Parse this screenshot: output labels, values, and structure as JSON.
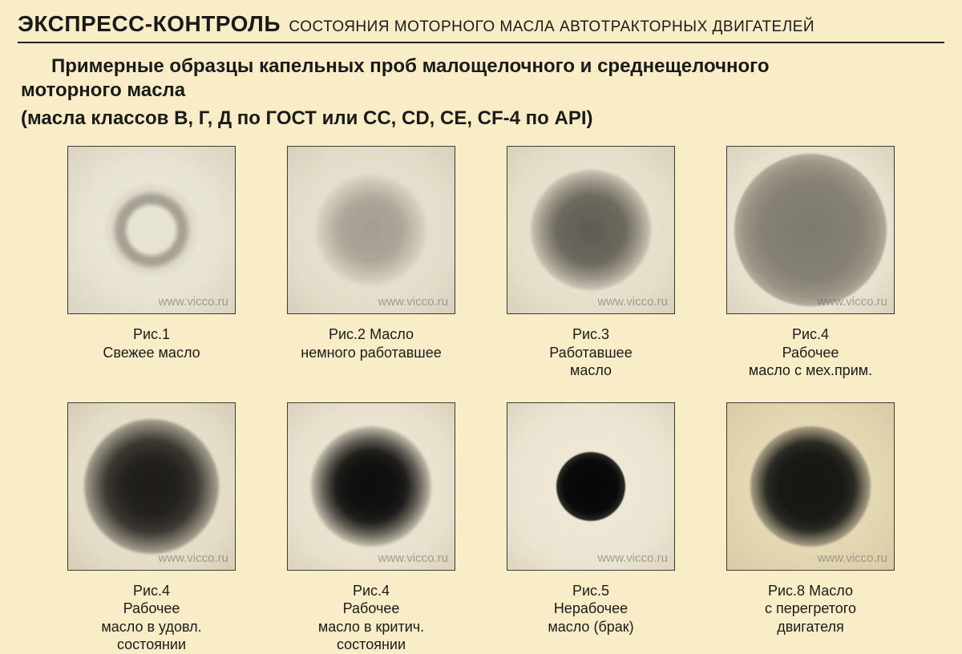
{
  "header": {
    "title_bold": "ЭКСПРЕСС-КОНТРОЛЬ",
    "title_rest": "СОСТОЯНИЯ МОТОРНОГО МАСЛА АВТОТРАКТОРНЫХ ДВИГАТЕЛЕЙ"
  },
  "intro_line1": "Примерные образцы капельных проб малощелочного и среднещелочного",
  "intro_line2": "моторного масла",
  "classes_note": "(масла классов В, Г, Д по ГОСТ или CC, CD, CE, CF-4 по API)",
  "watermark": "www.vicco.ru",
  "samples": [
    {
      "caption": "Рис.1\nСвежее масло",
      "paper_bg": "radial-gradient(circle at 50% 50%, #eeeadb 0%, #e7e2d1 60%, #d9d3c0 100%)",
      "spot_size": 118,
      "spot_style": "background:radial-gradient(circle, rgba(140,135,120,0.05) 0%, rgba(140,135,120,0.05) 34%, rgba(110,105,92,0.55) 42%, rgba(110,105,92,0.55) 50%, rgba(150,145,130,0.15) 60%, rgba(200,195,180,0) 75%);filter:blur(1.2px);"
    },
    {
      "caption": "Рис.2 Масло\nнемного работавшее",
      "paper_bg": "radial-gradient(circle at 50% 50%, #eae5d4 0%, #e2dcc9 70%, #d5cfbb 100%)",
      "spot_size": 138,
      "spot_style": "background:radial-gradient(circle, rgba(105,100,90,0.55) 0%, rgba(110,105,95,0.5) 38%, rgba(130,125,112,0.35) 55%, rgba(170,165,150,0.12) 72%, rgba(200,195,180,0) 85%);filter:blur(2px);"
    },
    {
      "caption": "Рис.3\nРаботавшее\nмасло",
      "paper_bg": "radial-gradient(circle at 50% 50%, #ece7d5 0%, #e4dec9 70%, #d7d0bb 100%)",
      "spot_size": 150,
      "spot_style": "background:radial-gradient(circle, rgba(70,66,60,0.85) 0%, rgba(78,74,66,0.8) 40%, rgba(100,95,85,0.55) 58%, rgba(150,145,130,0.18) 74%, rgba(200,195,180,0) 86%);filter:blur(1.5px);"
    },
    {
      "caption": "Рис.4\nРабочее\nмасло с мех.прим.",
      "paper_bg": "radial-gradient(circle at 50% 50%, #efeada 0%, #e7e1cd 70%, #d9d2bd 100%)",
      "spot_size": 190,
      "spot_style": "background:radial-gradient(circle, rgba(95,90,80,0.78) 0%, rgba(100,95,85,0.75) 45%, rgba(112,106,94,0.65) 62%, rgba(140,134,118,0.35) 78%, rgba(200,195,180,0) 92%);filter:blur(1px);"
    },
    {
      "caption": "Рис.4\nРабочее\nмасло в удовл.\nсостоянии",
      "paper_bg": "radial-gradient(circle at 50% 50%, #ece6d3 0%, #e3dcc6 70%, #d5cdb6 100%)",
      "spot_size": 168,
      "spot_style": "background:radial-gradient(circle, rgba(20,18,16,0.96) 0%, rgba(25,23,20,0.95) 30%, rgba(40,37,33,0.9) 48%, rgba(75,70,62,0.6) 64%, rgba(150,144,128,0.15) 80%, rgba(200,195,180,0) 92%);filter:blur(1.5px);"
    },
    {
      "caption": "Рис.4\nРабочее\nмасло в критич.\nсостоянии",
      "paper_bg": "radial-gradient(circle at 50% 50%, #efe9d8 0%, #e7e0cc 70%, #d9d1bb 100%)",
      "spot_size": 150,
      "spot_style": "background:radial-gradient(circle, rgba(8,8,8,0.98) 0%, rgba(12,12,12,0.98) 28%, rgba(20,19,17,0.95) 42%, rgba(55,52,46,0.75) 56%, rgba(120,115,100,0.25) 72%, rgba(200,195,180,0) 85%);filter:blur(1.5px);"
    },
    {
      "caption": "Рис.5\nНерабочее\nмасло (брак)",
      "paper_bg": "radial-gradient(circle at 50% 50%, #f1ecdc 0%, #e9e3d0 70%, #dcd5c0 100%)",
      "spot_size": 86,
      "spot_style": "background:radial-gradient(circle, #050505 0%, #0a0a0a 55%, rgba(20,20,18,0.9) 70%, rgba(60,58,52,0.4) 85%, rgba(200,195,180,0) 100%);filter:blur(0.8px);"
    },
    {
      "caption": "Рис.8 Масло\nс перегретого\nдвигателя",
      "paper_bg": "radial-gradient(circle at 50% 50%, #eadfbd 0%, #e3d7b2 60%, #d8cba4 100%)",
      "spot_size": 150,
      "spot_style": "background:radial-gradient(circle, rgba(15,15,14,0.97) 0%, rgba(18,18,16,0.97) 38%, rgba(28,27,24,0.92) 52%, rgba(70,65,55,0.55) 66%, rgba(150,140,115,0.12) 80%, rgba(210,200,170,0) 92%);filter:blur(1.4px);"
    }
  ]
}
